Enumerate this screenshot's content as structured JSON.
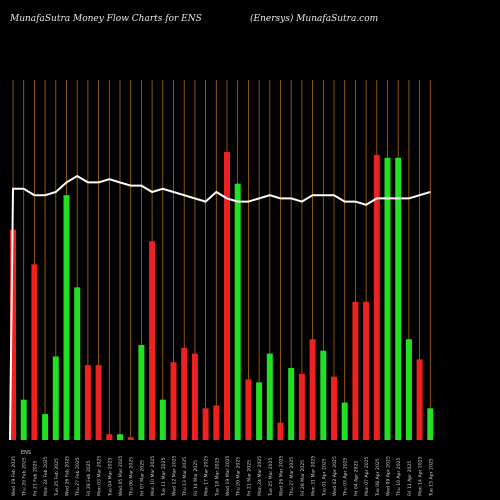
{
  "header": {
    "left": "MunafaSutra  Money Flow  Charts for ENS",
    "right": "(Enersys) MunafaSutra.com"
  },
  "colors": {
    "background": "#000000",
    "grid": "#b06a12",
    "up": "#22e022",
    "down": "#ee2020",
    "line": "#ffffff"
  },
  "chart_data": {
    "type": "bar",
    "title": "MunafaSutra  Money Flow  Charts for ENS",
    "subtitle": "(Enersys) MunafaSutra.com",
    "categories": [
      "Wed 19 Feb 2025",
      "Thu 20 Feb 2025",
      "Fri 21 Feb 2025",
      "Mon 24 Feb 2025",
      "Tue 25 Feb 2025",
      "Wed 26 Feb 2025",
      "Thu 27 Feb 2025",
      "Fri 28 Feb 2025",
      "Mon 03 Mar 2025",
      "Tue 04 Mar 2025",
      "Wed 05 Mar 2025",
      "Thu 06 Mar 2025",
      "Fri 07 Mar 2025",
      "Mon 10 Mar 2025",
      "Tue 11 Mar 2025",
      "Wed 12 Mar 2025",
      "Thu 13 Mar 2025",
      "Fri 14 Mar 2025",
      "Mon 17 Mar 2025",
      "Tue 18 Mar 2025",
      "Wed 19 Mar 2025",
      "Thu 20 Mar 2025",
      "Fri 21 Mar 2025",
      "Mon 24 Mar 2025",
      "Tue 25 Mar 2025",
      "Wed 26 Mar 2025",
      "Thu 27 Mar 2025",
      "Fri 28 Mar 2025",
      "Mon 31 Mar 2025",
      "Tue 01 Apr 2025",
      "Wed 02 Apr 2025",
      "Thu 03 Apr 2025",
      "Fri 04 Apr 2025",
      "Mon 07 Apr 2025",
      "Tue 08 Apr 2025",
      "Wed 09 Apr 2025",
      "Thu 10 Apr 2025",
      "Fri 11 Apr 2025",
      "Mon 14 Apr 2025",
      "Tue 15 Apr 2025"
    ],
    "tick_labels": [
      "Wed 19 Feb 2025",
      "Thu 20 Feb 2025",
      "Fri 21 Feb 2025",
      "Mon 24 Feb 2025",
      "Tue 25 Feb 2025",
      "Wed 26 Feb 2025",
      "Thu 27 Feb 2025",
      "Fri 28 Feb 2025",
      "Mon 03 Mar 2025",
      "Tue 04 Mar 2025",
      "Wed 05 Mar 2025",
      "Thu 06 Mar 2025",
      "Fri 07 Mar 2025",
      "Mon 10 Mar 2025",
      "Tue 11 Mar 2025",
      "Wed 12 Mar 2025",
      "Thu 13 Mar 2025",
      "Fri 14 Mar 2025",
      "Mon 17 Mar 2025",
      "Tue 18 Mar 2025",
      "Wed 19 Mar 2025",
      "Thu 20 Mar 2025",
      "Fri 21 Mar 2025",
      "Mon 24 Mar 2025",
      "Tue 25 Mar 2025",
      "Wed 26 Mar 2025",
      "Thu 27 Mar 2025",
      "Fri 28 Mar 2025",
      "Mon 31 Mar 2025",
      "Tue 01 Apr 2025",
      "Wed 02 Apr 2025",
      "Thu 03 Apr 2025",
      "Fri 04 Apr 2025",
      "Mon 07 Apr 2025",
      "Tue 08 Apr 2025",
      "Wed 09 Apr 2025",
      "Thu 10 Apr 2025",
      "Fri 11 Apr 2025",
      "Mon 14 Apr 2025",
      "Tue 15 Apr 2025"
    ],
    "mini_label": "ENS",
    "bars": {
      "values": [
        73,
        14,
        61,
        9,
        29,
        85,
        53,
        26,
        26,
        2,
        2,
        1,
        33,
        69,
        14,
        27,
        32,
        30,
        11,
        12,
        100,
        89,
        21,
        20,
        30,
        6,
        25,
        23,
        35,
        31,
        22,
        13,
        48,
        48,
        99,
        98,
        98,
        35,
        28,
        11
      ],
      "direction": [
        "down",
        "up",
        "down",
        "up",
        "up",
        "up",
        "up",
        "down",
        "down",
        "down",
        "up",
        "down",
        "up",
        "down",
        "up",
        "down",
        "down",
        "down",
        "down",
        "down",
        "down",
        "up",
        "down",
        "up",
        "up",
        "down",
        "up",
        "down",
        "down",
        "up",
        "down",
        "up",
        "down",
        "down",
        "down",
        "up",
        "up",
        "up",
        "down",
        "up"
      ]
    },
    "line": {
      "name": "",
      "values": [
        98,
        98,
        96,
        96,
        97,
        100,
        102,
        100,
        100,
        101,
        100,
        99,
        99,
        97,
        98,
        97,
        96,
        95,
        94,
        97,
        95,
        94,
        94,
        95,
        96,
        95,
        95,
        94,
        96,
        96,
        96,
        94,
        94,
        93,
        95,
        95,
        95,
        95,
        96,
        97
      ]
    },
    "ylim": [
      0,
      100
    ],
    "grid": "vertical"
  }
}
